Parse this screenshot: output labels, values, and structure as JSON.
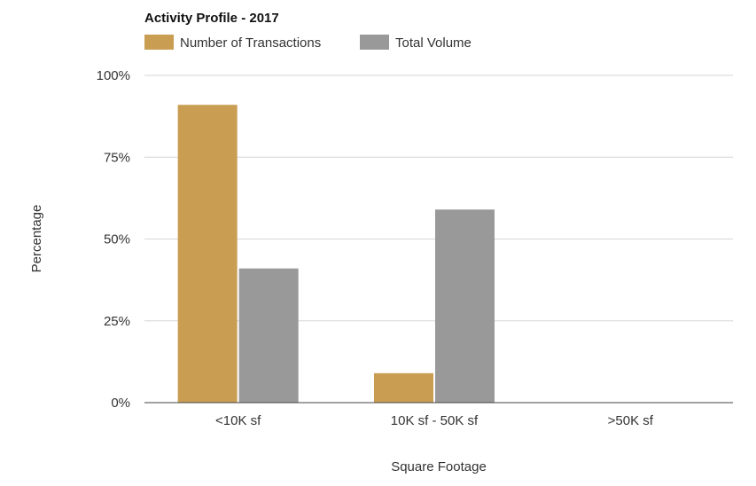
{
  "colors": {
    "series_1": "#c99e53",
    "series_2": "#999999",
    "grid": "#d6d6d6",
    "baseline": "#444444"
  },
  "chart_data": {
    "type": "bar",
    "title": "Activity Profile - 2017",
    "xlabel": "Square Footage",
    "ylabel": "Percentage",
    "categories": [
      "<10K sf",
      "10K sf - 50K sf",
      ">50K sf"
    ],
    "series": [
      {
        "name": "Number of Transactions",
        "values": [
          91,
          9,
          0
        ]
      },
      {
        "name": "Total Volume",
        "values": [
          41,
          59,
          0
        ]
      }
    ],
    "ylim": [
      0,
      100
    ],
    "yticks": [
      0,
      25,
      50,
      75,
      100
    ],
    "ytick_labels": [
      "0%",
      "25%",
      "50%",
      "75%",
      "100%"
    ],
    "grid": true,
    "legend_position": "top-left"
  }
}
